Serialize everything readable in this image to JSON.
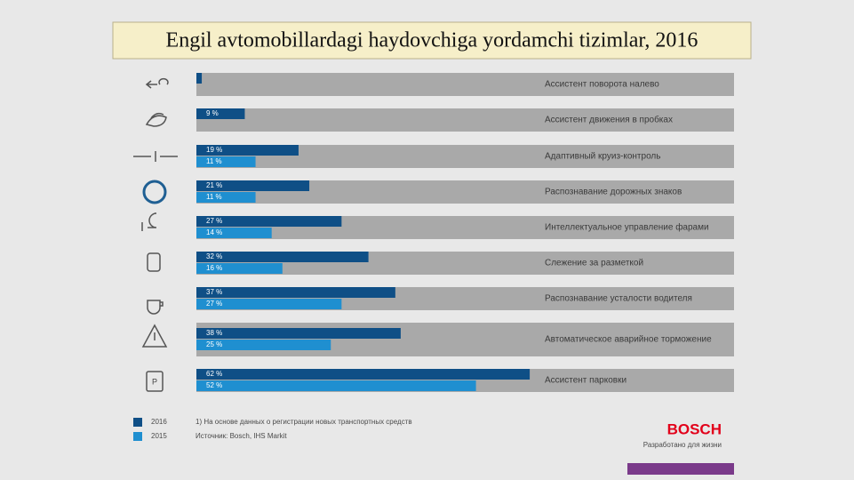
{
  "chart_data": {
    "type": "bar",
    "orientation": "horizontal",
    "title": "Engil avtomobillardagi haydovchiga yordamchi tizimlar, 2016",
    "categories": [
      "Ассистент поворота налево",
      "Ассистент движения в пробках",
      "Адаптивный круиз-контроль",
      "Распознавание дорожных знаков",
      "Интеллектуальное управление фарами",
      "Слежение за разметкой",
      "Распознавание усталости водителя",
      "Автоматическое аварийное торможение",
      "Ассистент парковки"
    ],
    "series": [
      {
        "name": "2016",
        "color": "#0f4f86",
        "values": [
          1,
          9,
          19,
          21,
          27,
          32,
          37,
          38,
          62
        ],
        "value_labels": [
          null,
          "9 %",
          "19 %",
          "21 %",
          "27 %",
          "32 %",
          "37 %",
          "38 %",
          "62 %"
        ]
      },
      {
        "name": "2015",
        "color": "#1f8fd0",
        "values": [
          null,
          null,
          11,
          11,
          14,
          16,
          27,
          25,
          52
        ],
        "value_labels": [
          null,
          null,
          "11 %",
          "11 %",
          "14 %",
          "16 %",
          "27 %",
          "25 %",
          "52 %"
        ]
      }
    ],
    "xlim": [
      0,
      100
    ],
    "track_color": "#a9a9a9",
    "footnotes": [
      "1) На основе данных о регистрации новых транспортных средств",
      "Источник: Bosch, IHS Markit"
    ],
    "brand": "BOSCH",
    "slogan": "Разработано для жизни"
  }
}
